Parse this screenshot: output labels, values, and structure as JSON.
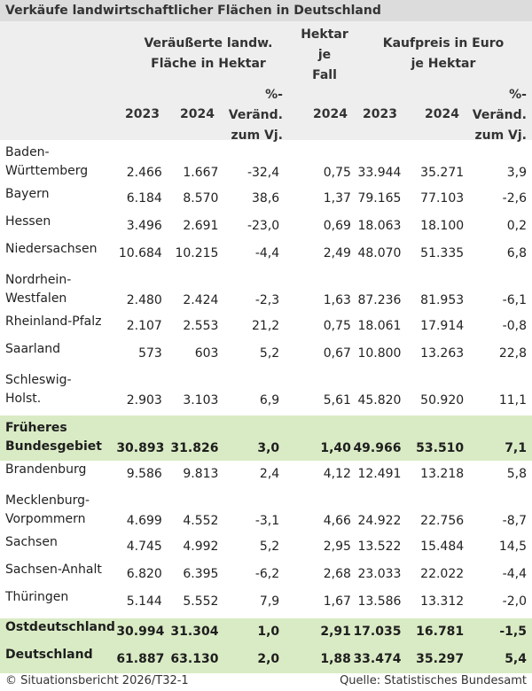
{
  "title": "Verkäufe landwirtschaftlicher Flächen in Deutschland",
  "header": {
    "group1": [
      "Veräußerte landw.",
      "Fläche in Hektar"
    ],
    "group2": [
      "Hektar",
      "je",
      "Fall"
    ],
    "group3": [
      "Kaufpreis in Euro",
      "je Hektar"
    ],
    "columns": [
      "2023",
      "2024",
      "%-",
      "Veränd.",
      "zum Vj.",
      "2024",
      "2023",
      "2024",
      "%-",
      "Veränd.",
      "zum Vj."
    ]
  },
  "rows": [
    {
      "label": [
        "Baden-",
        "Württemberg"
      ],
      "values": [
        "2.466",
        "1.667",
        "-32,4",
        "0,75",
        "33.944",
        "35.271",
        "3,9"
      ]
    },
    {
      "label": [
        "Bayern"
      ],
      "values": [
        "6.184",
        "8.570",
        "38,6",
        "1,37",
        "79.165",
        "77.103",
        "-2,6"
      ]
    },
    {
      "label": [
        "Hessen"
      ],
      "values": [
        "3.496",
        "2.691",
        "-23,0",
        "0,69",
        "18.063",
        "18.100",
        "0,2"
      ]
    },
    {
      "label": [
        "Niedersachsen"
      ],
      "values": [
        "10.684",
        "10.215",
        "-4,4",
        "2,49",
        "48.070",
        "51.335",
        "6,8"
      ]
    },
    {
      "label": [
        "Nordrhein-",
        "Westfalen"
      ],
      "values": [
        "2.480",
        "2.424",
        "-2,3",
        "1,63",
        "87.236",
        "81.953",
        "-6,1"
      ]
    },
    {
      "label": [
        "Rheinland-Pfalz"
      ],
      "values": [
        "2.107",
        "2.553",
        "21,2",
        "0,75",
        "18.061",
        "17.914",
        "-0,8"
      ]
    },
    {
      "label": [
        "Saarland"
      ],
      "values": [
        "573",
        "603",
        "5,2",
        "0,67",
        "10.800",
        "13.263",
        "22,8"
      ]
    },
    {
      "label": [
        "Schleswig-",
        "Holst."
      ],
      "values": [
        "2.903",
        "3.103",
        "6,9",
        "5,61",
        "45.820",
        "50.920",
        "11,1"
      ]
    },
    {
      "label": [
        "Früheres",
        "Bundesgebiet"
      ],
      "values": [
        "30.893",
        "31.826",
        "3,0",
        "1,40",
        "49.966",
        "53.510",
        "7,1"
      ],
      "summary": true
    },
    {
      "label": [
        "Brandenburg"
      ],
      "values": [
        "9.586",
        "9.813",
        "2,4",
        "4,12",
        "12.491",
        "13.218",
        "5,8"
      ]
    },
    {
      "label": [
        "Mecklenburg-",
        "Vorpommern"
      ],
      "values": [
        "4.699",
        "4.552",
        "-3,1",
        "4,66",
        "24.922",
        "22.756",
        "-8,7"
      ]
    },
    {
      "label": [
        "Sachsen"
      ],
      "values": [
        "4.745",
        "4.992",
        "5,2",
        "2,95",
        "13.522",
        "15.484",
        "14,5"
      ]
    },
    {
      "label": [
        "Sachsen-Anhalt"
      ],
      "values": [
        "6.820",
        "6.395",
        "-6,2",
        "2,68",
        "23.033",
        "22.022",
        "-4,4"
      ]
    },
    {
      "label": [
        "Thüringen"
      ],
      "values": [
        "5.144",
        "5.552",
        "7,9",
        "1,67",
        "13.586",
        "13.312",
        "-2,0"
      ]
    },
    {
      "label": [
        "Ostdeutschland"
      ],
      "values": [
        "30.994",
        "31.304",
        "1,0",
        "2,91",
        "17.035",
        "16.781",
        "-1,5"
      ],
      "summary": true
    },
    {
      "label": [
        "Deutschland"
      ],
      "values": [
        "61.887",
        "63.130",
        "2,0",
        "1,88",
        "33.474",
        "35.297",
        "5,4"
      ],
      "summary": true
    }
  ],
  "footer": {
    "left": "© Situationsbericht 2026/T32-1",
    "right": "Quelle: Statistisches Bundesamt"
  },
  "colors": {
    "summary_bg": "#d9ebc4",
    "header_bg": "#eeeeee",
    "title_bg": "#dcdcdc"
  }
}
